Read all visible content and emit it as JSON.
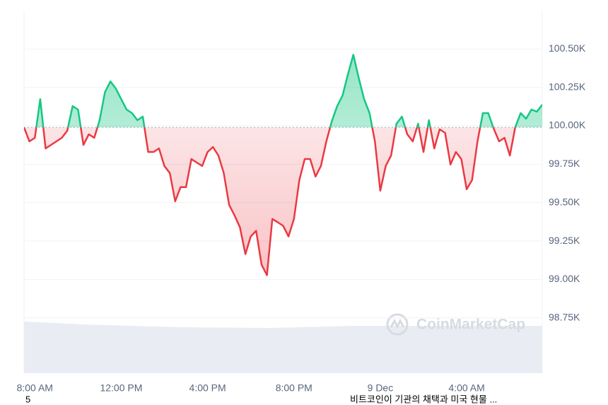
{
  "chart_data": {
    "type": "line",
    "categories": [
      null,
      null,
      "8:00 AM",
      null,
      null,
      null,
      null,
      null,
      null,
      null,
      null,
      null,
      null,
      null,
      null,
      null,
      null,
      null,
      "12:00 PM",
      null,
      null,
      null,
      null,
      null,
      null,
      null,
      null,
      null,
      null,
      null,
      null,
      null,
      null,
      null,
      "4:00 PM",
      null,
      null,
      null,
      null,
      null,
      null,
      null,
      null,
      null,
      null,
      null,
      null,
      null,
      null,
      null,
      "8:00 PM",
      null,
      null,
      null,
      null,
      null,
      null,
      null,
      null,
      null,
      null,
      null,
      null,
      null,
      null,
      null,
      "9 Dec",
      null,
      null,
      null,
      null,
      null,
      null,
      null,
      null,
      null,
      null,
      null,
      null,
      null,
      null,
      null,
      "4:00 AM",
      null,
      null,
      null,
      null,
      null,
      null,
      null,
      null,
      null,
      null,
      null,
      null,
      null,
      null
    ],
    "values": [
      99990,
      99899,
      99922,
      100174,
      99853,
      99876,
      99899,
      99922,
      99968,
      100128,
      100106,
      99876,
      99945,
      99922,
      100037,
      100220,
      100289,
      100243,
      100174,
      100106,
      100083,
      100037,
      100060,
      99830,
      99830,
      99853,
      99739,
      99693,
      99509,
      99601,
      99601,
      99784,
      99761,
      99739,
      99830,
      99862,
      99807,
      99693,
      99486,
      99417,
      99339,
      99165,
      99280,
      99317,
      99096,
      99028,
      99394,
      99372,
      99349,
      99280,
      99394,
      99647,
      99784,
      99784,
      99670,
      99739,
      99899,
      100028,
      100128,
      100197,
      100335,
      100463,
      100312,
      100174,
      100083,
      99899,
      99578,
      99739,
      99807,
      100014,
      100060,
      99945,
      99899,
      100014,
      99830,
      100037,
      99853,
      99977,
      99954,
      99748,
      99830,
      99784,
      99587,
      99647,
      99899,
      100083,
      100083,
      99982,
      99899,
      99922,
      99807,
      99991,
      100083,
      100046,
      100106,
      100092,
      100138
    ],
    "baseline": 99990,
    "color_above": "#16c784",
    "color_below": "#ea3943",
    "ylim": [
      98390,
      100750
    ],
    "yticks": [
      {
        "value": 98750,
        "label": "98.75K"
      },
      {
        "value": 99000,
        "label": "99.00K"
      },
      {
        "value": 99250,
        "label": "99.25K"
      },
      {
        "value": 99500,
        "label": "99.50K"
      },
      {
        "value": 99750,
        "label": "99.75K"
      },
      {
        "value": 100000,
        "label": "100.00K"
      },
      {
        "value": 100250,
        "label": "100.25K"
      },
      {
        "value": 100500,
        "label": "100.50K"
      }
    ],
    "grid": true,
    "watermark": "CoinMarketCap"
  },
  "page_number": "5",
  "caption": "비트코인이 기관의 채택과 미국 현물 ..."
}
